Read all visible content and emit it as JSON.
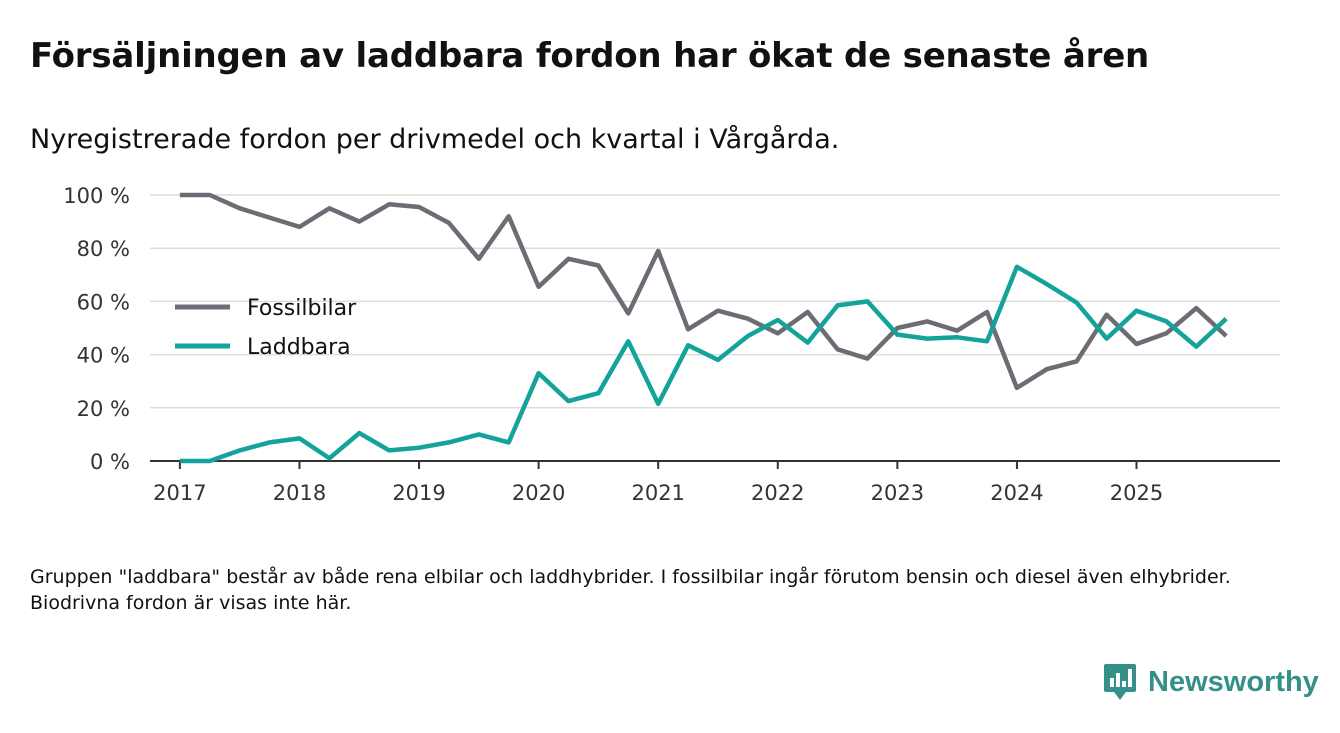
{
  "header": {
    "title": "Försäljningen av laddbara fordon har ökat de senaste åren",
    "subtitle": "Nyregistrerade fordon per drivmedel och kvartal i Vårgårda."
  },
  "footnote": "Gruppen \"laddbara\" består av både rena elbilar och laddhybrider. I fossilbilar ingår förutom bensin och diesel även elhybrider. Biodrivna fordon är visas inte här.",
  "brand": {
    "name": "Newsworthy",
    "icon": "newsworthy-logo-icon",
    "color": "#35908a"
  },
  "chart_data": {
    "type": "line",
    "x": [
      2017,
      2017.25,
      2017.5,
      2017.75,
      2018,
      2018.25,
      2018.5,
      2018.75,
      2019,
      2019.25,
      2019.5,
      2019.75,
      2020,
      2020.25,
      2020.5,
      2020.75,
      2021,
      2021.25,
      2021.5,
      2021.75,
      2022,
      2022.25,
      2022.5,
      2022.75,
      2023,
      2023.25,
      2023.5,
      2023.75,
      2024,
      2024.25,
      2024.5,
      2024.75,
      2025,
      2025.25,
      2025.5,
      2025.75
    ],
    "xlim": [
      2016.75,
      2026.2
    ],
    "xticks": [
      2017,
      2018,
      2019,
      2020,
      2021,
      2022,
      2023,
      2024,
      2025
    ],
    "xtick_labels": [
      "2017",
      "2018",
      "2019",
      "2020",
      "2021",
      "2022",
      "2023",
      "2024",
      "2025"
    ],
    "ylim": [
      0,
      100
    ],
    "yticks": [
      0,
      20,
      40,
      60,
      80,
      100
    ],
    "ytick_labels": [
      "0 %",
      "20 %",
      "40 %",
      "60 %",
      "80 %",
      "100 %"
    ],
    "grid": true,
    "legend_position": "left-middle",
    "series": [
      {
        "name": "Fossilbilar",
        "color": "#6d6b73",
        "values": [
          100,
          100,
          95,
          91.5,
          88,
          95,
          90,
          96.5,
          95.5,
          89.5,
          76,
          92,
          65.5,
          76,
          73.5,
          55.5,
          79,
          49.5,
          56.5,
          53.5,
          48,
          56,
          42,
          38.5,
          50,
          52.5,
          49,
          56,
          27.5,
          34.5,
          37.5,
          55,
          44,
          48,
          57.5,
          47
        ]
      },
      {
        "name": "Laddbara",
        "color": "#13a39b",
        "values": [
          0,
          0,
          4,
          7,
          8.5,
          1,
          10.5,
          4,
          5,
          7,
          10,
          7,
          33,
          22.5,
          25.5,
          45,
          21.5,
          43.5,
          38,
          47,
          53,
          44.5,
          58.5,
          60,
          47.5,
          46,
          46.5,
          45,
          73,
          66.5,
          59.5,
          46,
          56.5,
          52.5,
          43,
          53.5
        ]
      }
    ]
  }
}
